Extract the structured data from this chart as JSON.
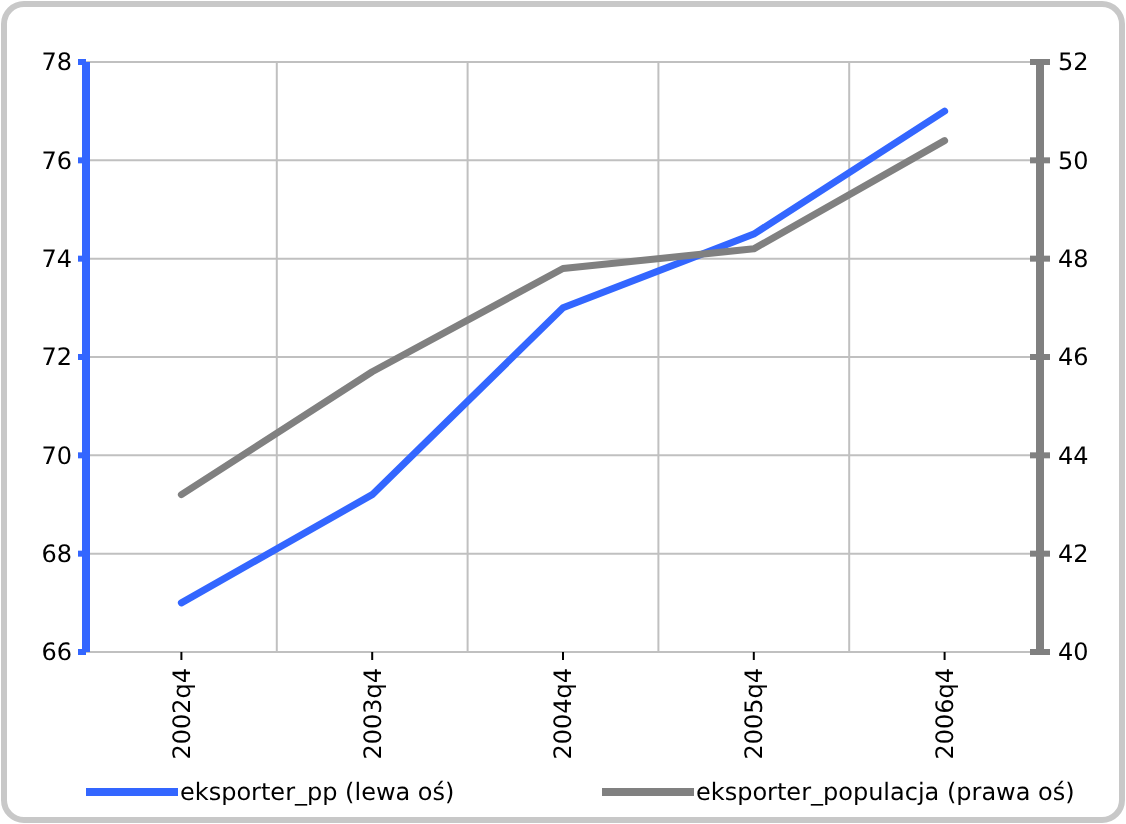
{
  "chart_data": {
    "type": "line",
    "categories": [
      "2002q4",
      "2003q4",
      "2004q4",
      "2005q4",
      "2006q4"
    ],
    "series": [
      {
        "name": "eksporter_pp (lewa oś)",
        "color": "#3366ff",
        "values": [
          67.0,
          69.2,
          73.0,
          74.5,
          77.0
        ]
      },
      {
        "name": "eksporter_populacja (prawa oś)",
        "color": "#808080",
        "values": [
          43.2,
          45.7,
          47.8,
          48.2,
          50.4
        ],
        "axis": "y2"
      }
    ],
    "ylim": [
      66,
      78
    ],
    "yticks": [
      66,
      68,
      70,
      72,
      74,
      76,
      78
    ],
    "y2lim": [
      40,
      52
    ],
    "y2ticks": [
      40,
      42,
      44,
      46,
      48,
      50,
      52
    ],
    "grid": true,
    "legend": "bottom",
    "marker": "none",
    "line_style": "solid"
  }
}
